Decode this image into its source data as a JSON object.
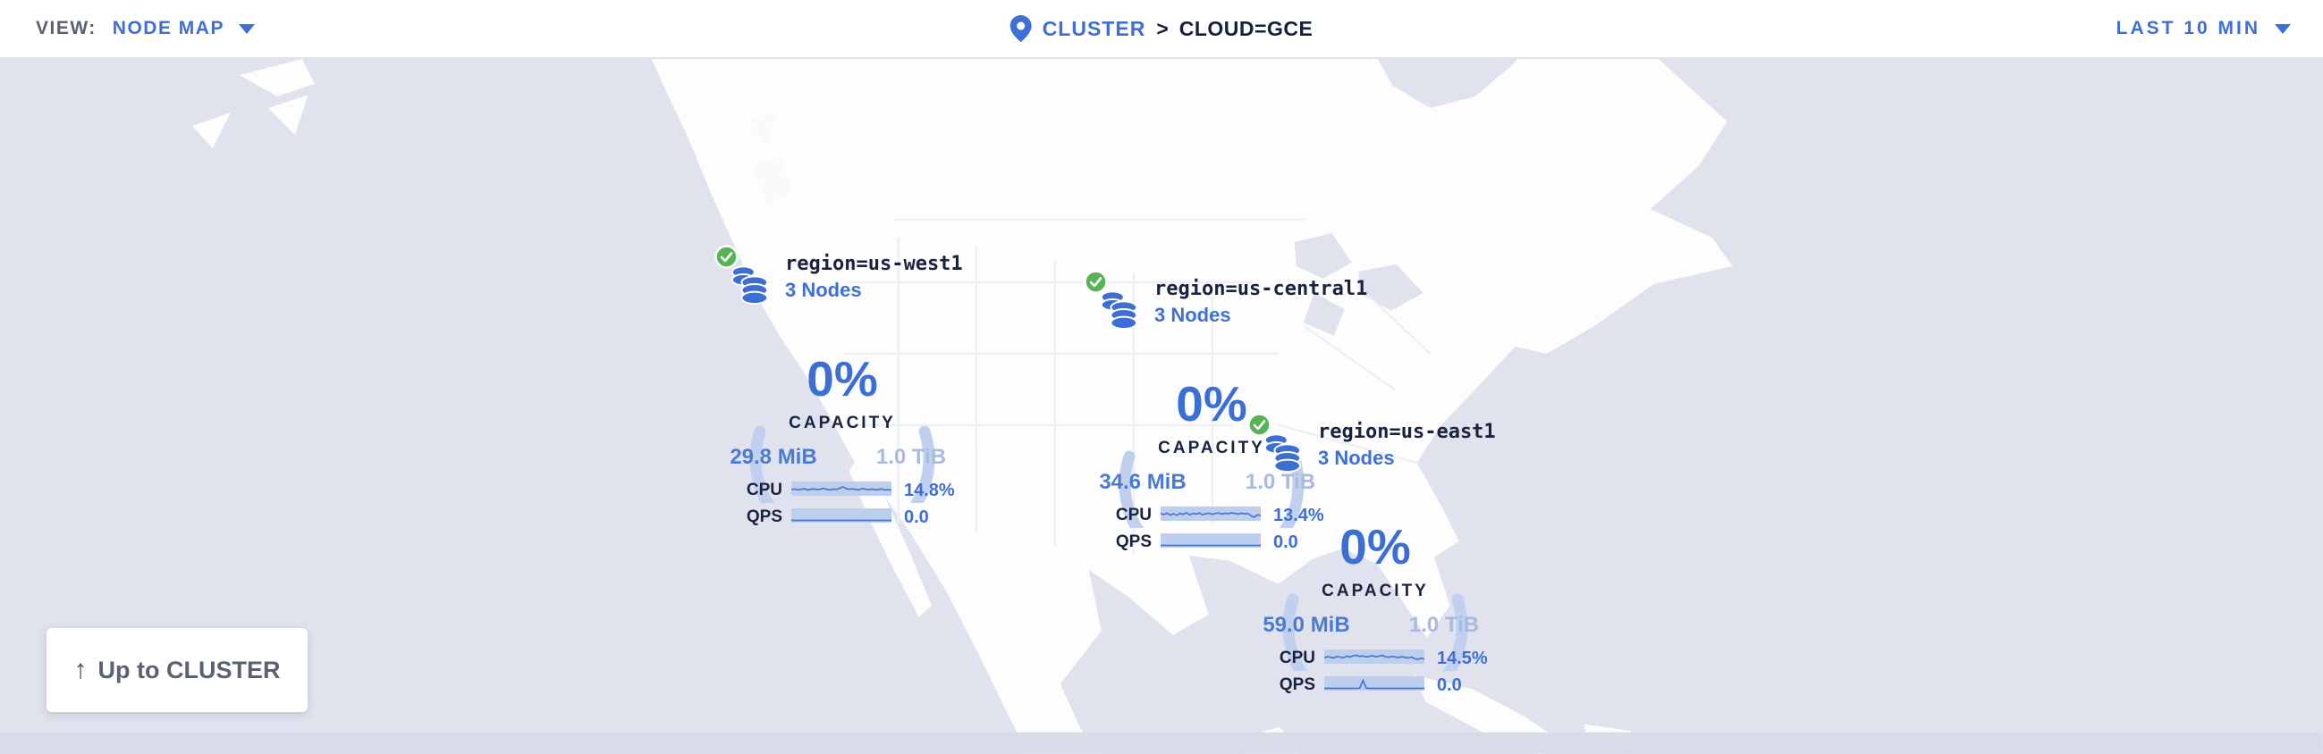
{
  "topbar": {
    "view_label": "VIEW:",
    "view_value": "NODE MAP",
    "breadcrumb_root": "CLUSTER",
    "breadcrumb_separator": ">",
    "breadcrumb_current": "CLOUD=GCE",
    "time_range": "LAST 10 MIN"
  },
  "map": {
    "up_button_arrow": "↑",
    "up_button_label": "Up to CLUSTER"
  },
  "regions": [
    {
      "name": "region=us-west1",
      "nodes": "3 Nodes",
      "status_icon": "check-circle",
      "node_icon": "database-stack",
      "capacity_pct": "0%",
      "capacity_label": "CAPACITY",
      "capacity_used": "29.8 MiB",
      "capacity_total": "1.0 TiB",
      "cpu_label": "CPU",
      "cpu_value": "14.8%",
      "qps_label": "QPS",
      "qps_value": "0.0",
      "cpu_spark": [
        0.42,
        0.48,
        0.4,
        0.45,
        0.52,
        0.38,
        0.46,
        0.5,
        0.42,
        0.47,
        0.55,
        0.44,
        0.4,
        0.48,
        0.44,
        0.58,
        0.72,
        0.52,
        0.46,
        0.5,
        0.44,
        0.4,
        0.55,
        0.46,
        0.42,
        0.48,
        0.4,
        0.44,
        0.5,
        0.38,
        0.42,
        0.36
      ],
      "qps_spark": [
        0,
        0,
        0,
        0,
        0,
        0,
        0,
        0,
        0,
        0,
        0,
        0,
        0,
        0,
        0,
        0,
        0,
        0,
        0,
        0,
        0,
        0,
        0,
        0,
        0,
        0,
        0,
        0,
        0,
        0,
        0,
        0
      ]
    },
    {
      "name": "region=us-central1",
      "nodes": "3 Nodes",
      "status_icon": "check-circle",
      "node_icon": "database-stack",
      "capacity_pct": "0%",
      "capacity_label": "CAPACITY",
      "capacity_used": "34.6 MiB",
      "capacity_total": "1.0 TiB",
      "cpu_label": "CPU",
      "cpu_value": "13.4%",
      "qps_label": "QPS",
      "qps_value": "0.0",
      "cpu_spark": [
        0.55,
        0.42,
        0.6,
        0.38,
        0.52,
        0.35,
        0.58,
        0.45,
        0.62,
        0.4,
        0.55,
        0.48,
        0.6,
        0.42,
        0.52,
        0.58,
        0.45,
        0.55,
        0.6,
        0.48,
        0.58,
        0.52,
        0.62,
        0.55,
        0.48,
        0.58,
        0.5,
        0.55,
        0.3,
        0.15,
        0.4,
        0.35
      ],
      "qps_spark": [
        0,
        0,
        0,
        0,
        0,
        0,
        0,
        0,
        0,
        0,
        0,
        0,
        0,
        0,
        0,
        0,
        0,
        0,
        0,
        0,
        0,
        0,
        0,
        0,
        0,
        0,
        0,
        0,
        0,
        0,
        0,
        0
      ]
    },
    {
      "name": "region=us-east1",
      "nodes": "3 Nodes",
      "status_icon": "check-circle",
      "node_icon": "database-stack",
      "capacity_pct": "0%",
      "capacity_label": "CAPACITY",
      "capacity_used": "59.0 MiB",
      "capacity_total": "1.0 TiB",
      "cpu_label": "CPU",
      "cpu_value": "14.5%",
      "qps_label": "QPS",
      "qps_value": "0.0",
      "cpu_spark": [
        0.4,
        0.52,
        0.44,
        0.38,
        0.55,
        0.46,
        0.4,
        0.58,
        0.48,
        0.62,
        0.68,
        0.55,
        0.6,
        0.48,
        0.55,
        0.62,
        0.5,
        0.58,
        0.65,
        0.52,
        0.45,
        0.55,
        0.48,
        0.42,
        0.52,
        0.44,
        0.38,
        0.48,
        0.3,
        0.25,
        0.35,
        0.28
      ],
      "qps_spark": [
        0,
        0,
        0,
        0,
        0,
        0,
        0,
        0,
        0,
        0,
        0,
        0.02,
        0.85,
        0.03,
        0,
        0,
        0,
        0,
        0,
        0,
        0,
        0,
        0,
        0,
        0,
        0,
        0,
        0,
        0,
        0,
        0,
        0
      ]
    }
  ],
  "colors": {
    "accent_blue": "#3e6fd6",
    "ring_blue": "#c0d0ee",
    "spark_band_blue": "#bdcfed",
    "dark_text": "#17233f",
    "gray_text": "#5a6170",
    "muted_total": "#a9badf",
    "status_green": "#56b456",
    "ocean": "#e0e3ee",
    "land": "#fdfdfe"
  }
}
